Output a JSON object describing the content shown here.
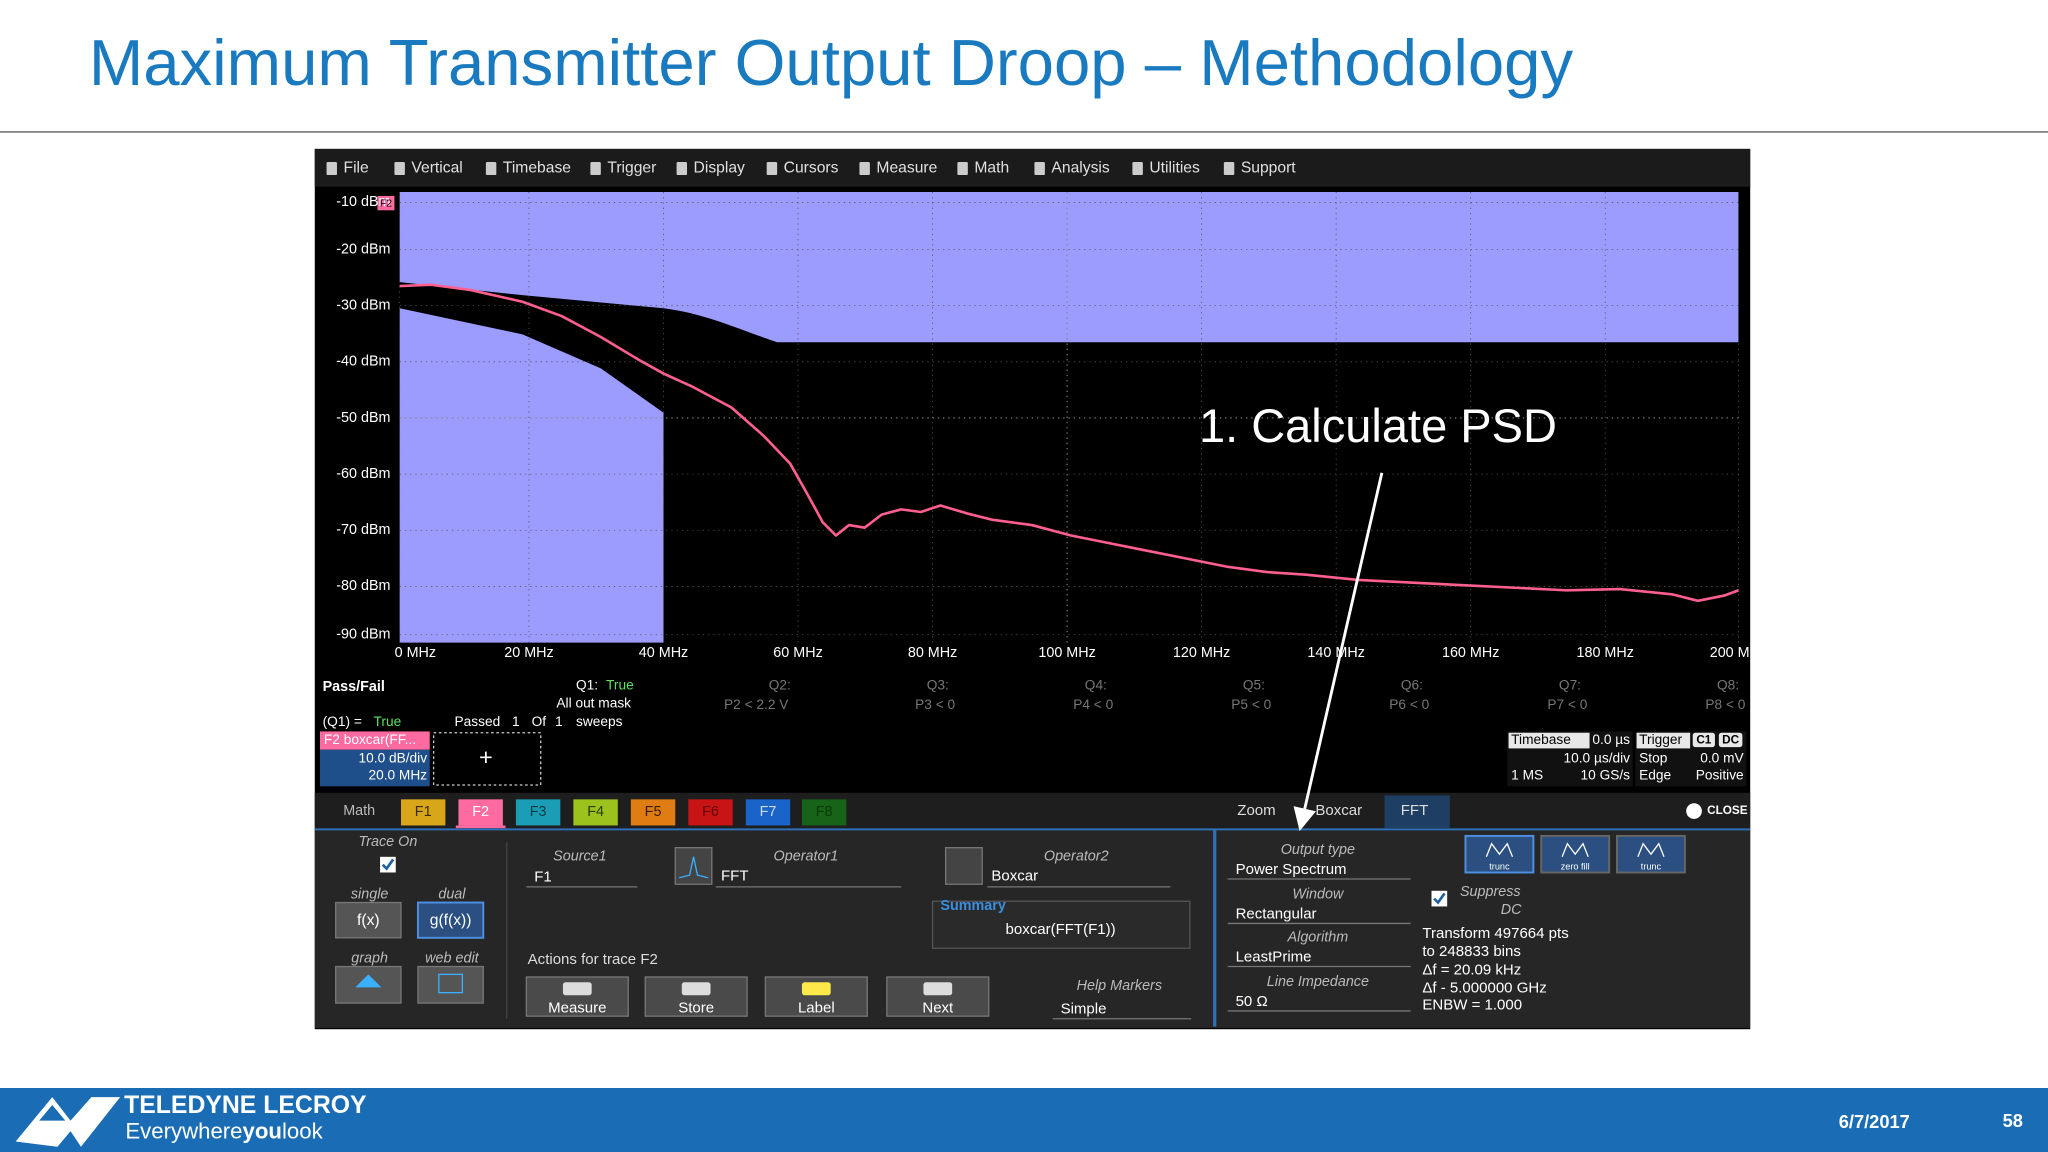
{
  "title": "Maximum Transmitter Output Droop – Methodology",
  "menu": [
    "File",
    "Vertical",
    "Timebase",
    "Trigger",
    "Display",
    "Cursors",
    "Measure",
    "Math",
    "Analysis",
    "Utilities",
    "Support"
  ],
  "plot": {
    "trace_tag": "F2",
    "y_labels": [
      "-10 dBm",
      "-20 dBm",
      "-30 dBm",
      "-40 dBm",
      "-50 dBm",
      "-60 dBm",
      "-70 dBm",
      "-80 dBm",
      "-90 dBm"
    ],
    "x_labels": [
      "0 MHz",
      "20 MHz",
      "40 MHz",
      "60 MHz",
      "80 MHz",
      "100 MHz",
      "120 MHz",
      "140 MHz",
      "160 MHz",
      "180 MHz",
      "200 MHz"
    ]
  },
  "annotation": "1. Calculate PSD",
  "pass_fail": {
    "title": "Pass/Fail",
    "q1_label": "Q1:",
    "q1_value": "True",
    "q1_desc": "All out mask",
    "queries": [
      {
        "label": "Q2:",
        "desc": "P2 < 2.2 V"
      },
      {
        "label": "Q3:",
        "desc": "P3 < 0"
      },
      {
        "label": "Q4:",
        "desc": "P4 < 0"
      },
      {
        "label": "Q5:",
        "desc": "P5 < 0"
      },
      {
        "label": "Q6:",
        "desc": "P6 < 0"
      },
      {
        "label": "Q7:",
        "desc": "P7 < 0"
      },
      {
        "label": "Q8:",
        "desc": "P8 < 0"
      }
    ],
    "result_label": "(Q1) =",
    "result_value": "True",
    "passed": "Passed",
    "count": "1",
    "of": "Of",
    "total": "1",
    "sweeps": "sweeps"
  },
  "trace_box": {
    "name": "F2 boxcar(FF...",
    "scale": "10.0 dB/div",
    "offset": "20.0 MHz",
    "add": "+"
  },
  "timebase": {
    "label": "Timebase",
    "delay": "0.0 µs",
    "per_div": "10.0 µs/div",
    "points": "1 MS",
    "rate": "10 GS/s"
  },
  "trigger": {
    "label": "Trigger",
    "source": "C1",
    "coupling": "DC",
    "mode": "Stop",
    "level": "0.0 mV",
    "type": "Edge",
    "slope": "Positive"
  },
  "tabs": {
    "math": "Math",
    "functions": [
      "F1",
      "F2",
      "F3",
      "F4",
      "F5",
      "F6",
      "F7",
      "F8"
    ],
    "right": [
      "Zoom",
      "Boxcar",
      "FFT"
    ],
    "close": "CLOSE"
  },
  "panel": {
    "trace_on": "Trace On",
    "single": "single",
    "dual": "dual",
    "fx": "f(x)",
    "gfx": "g(f(x))",
    "graph": "graph",
    "web_edit": "web edit",
    "source1_label": "Source1",
    "source1": "F1",
    "operator1_label": "Operator1",
    "operator1": "FFT",
    "operator2_label": "Operator2",
    "operator2": "Boxcar",
    "summary_label": "Summary",
    "summary": "boxcar(FFT(F1))",
    "actions": "Actions for trace F2",
    "buttons": [
      "Measure",
      "Store",
      "Label",
      "Next"
    ],
    "help_markers_label": "Help Markers",
    "help_markers": "Simple",
    "output_type_label": "Output type",
    "output_type": "Power Spectrum",
    "window_label": "Window",
    "window": "Rectangular",
    "algorithm_label": "Algorithm",
    "algorithm": "LeastPrime",
    "impedance_label": "Line Impedance",
    "impedance": "50 Ω",
    "suppress": "Suppress",
    "dc": "DC",
    "info": [
      "Transform 497664 pts",
      "to 248833 bins",
      "Δf = 20.09 kHz",
      "Δf - 5.000000 GHz",
      "ENBW = 1.000"
    ],
    "icon_labels": [
      "trunc",
      "zero fill",
      "trunc"
    ]
  },
  "footer": {
    "brand": "TELEDYNE LECROY",
    "tagline_1": "Everywhere",
    "tagline_2": "you",
    "tagline_3": "look",
    "date": "6/7/2017",
    "page": "58"
  }
}
